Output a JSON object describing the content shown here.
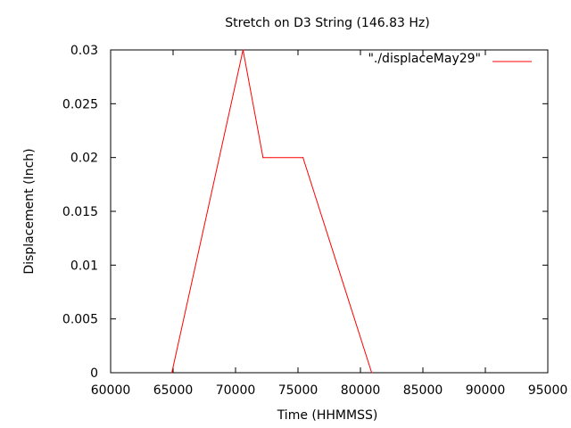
{
  "chart_data": {
    "type": "line",
    "title": "Stretch on D3 String (146.83 Hz)",
    "xlabel": "Time (HHMMSS)",
    "ylabel": "Displacement (Inch)",
    "xlim": [
      60000,
      95000
    ],
    "ylim": [
      0,
      0.03
    ],
    "x_ticks": [
      "60000",
      "65000",
      "70000",
      "75000",
      "80000",
      "85000",
      "90000",
      "95000"
    ],
    "y_ticks": [
      "0",
      "0.005",
      "0.01",
      "0.015",
      "0.02",
      "0.025",
      "0.03"
    ],
    "grid": false,
    "legend_position": "top-right",
    "series": [
      {
        "name": "\"./displaceMay29\"",
        "color": "#ff0000",
        "x": [
          64900,
          70600,
          72200,
          75400,
          80900
        ],
        "y": [
          0,
          0.03,
          0.02,
          0.02,
          0
        ]
      }
    ]
  }
}
